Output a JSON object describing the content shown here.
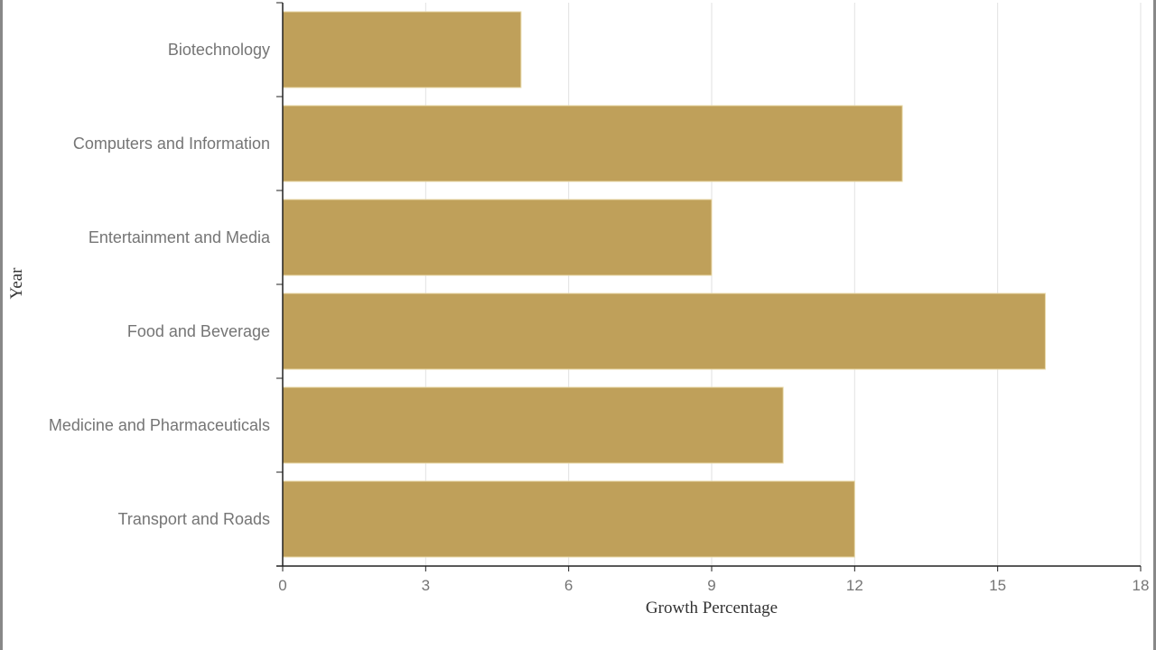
{
  "chart_data": {
    "type": "bar",
    "orientation": "horizontal",
    "categories": [
      "Biotechnology",
      "Computers and Information",
      "Entertainment and Media",
      "Food and Beverage",
      "Medicine and Pharmaceuticals",
      "Transport and Roads"
    ],
    "values": [
      5,
      13,
      9,
      16,
      10.5,
      12
    ],
    "xlabel": "Growth Percentage",
    "ylabel": "Year",
    "xlim": [
      0,
      18
    ],
    "xticks": [
      "0",
      "3",
      "6",
      "9",
      "12",
      "15",
      "18"
    ],
    "grid": "vertical",
    "colors": {
      "bar": "#bfa05a",
      "bar_stroke": "#e8d9a8",
      "grid": "#e2e2e2",
      "axis": "#222222"
    }
  }
}
